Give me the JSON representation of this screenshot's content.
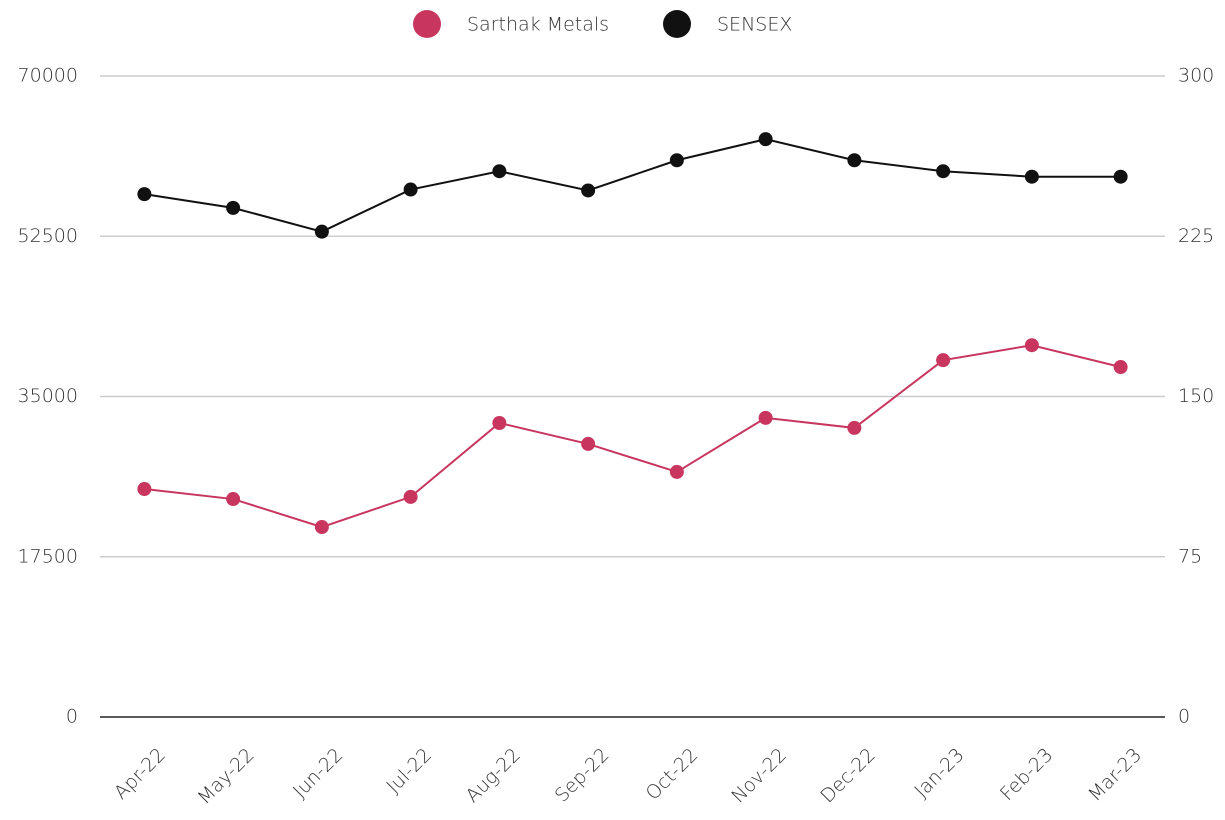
{
  "chart_data": {
    "type": "line",
    "categories": [
      "Apr-22",
      "May-22",
      "Jun-22",
      "Jul-22",
      "Aug-22",
      "Sep-22",
      "Oct-22",
      "Nov-22",
      "Dec-22",
      "Jan-23",
      "Feb-23",
      "Mar-23"
    ],
    "series": [
      {
        "name": "Sarthak Metals",
        "color": "#c8365f",
        "axis": "y2",
        "values": [
          106.7,
          102,
          88.9,
          103,
          137.6,
          127.8,
          114.7,
          140,
          135.3,
          167,
          174,
          163.8
        ]
      },
      {
        "name": "SENSEX",
        "color": "#111111",
        "values": [
          57100,
          55600,
          53000,
          57600,
          59600,
          57500,
          60800,
          63100,
          60800,
          59600,
          59000,
          59000
        ]
      }
    ],
    "ylim": [
      0,
      70000
    ],
    "yticks": [
      0,
      17500,
      35000,
      52500,
      70000
    ],
    "y2lim": [
      0,
      300
    ],
    "y2ticks": [
      0,
      75,
      150,
      225,
      300
    ],
    "grid": true,
    "legend": "top"
  }
}
